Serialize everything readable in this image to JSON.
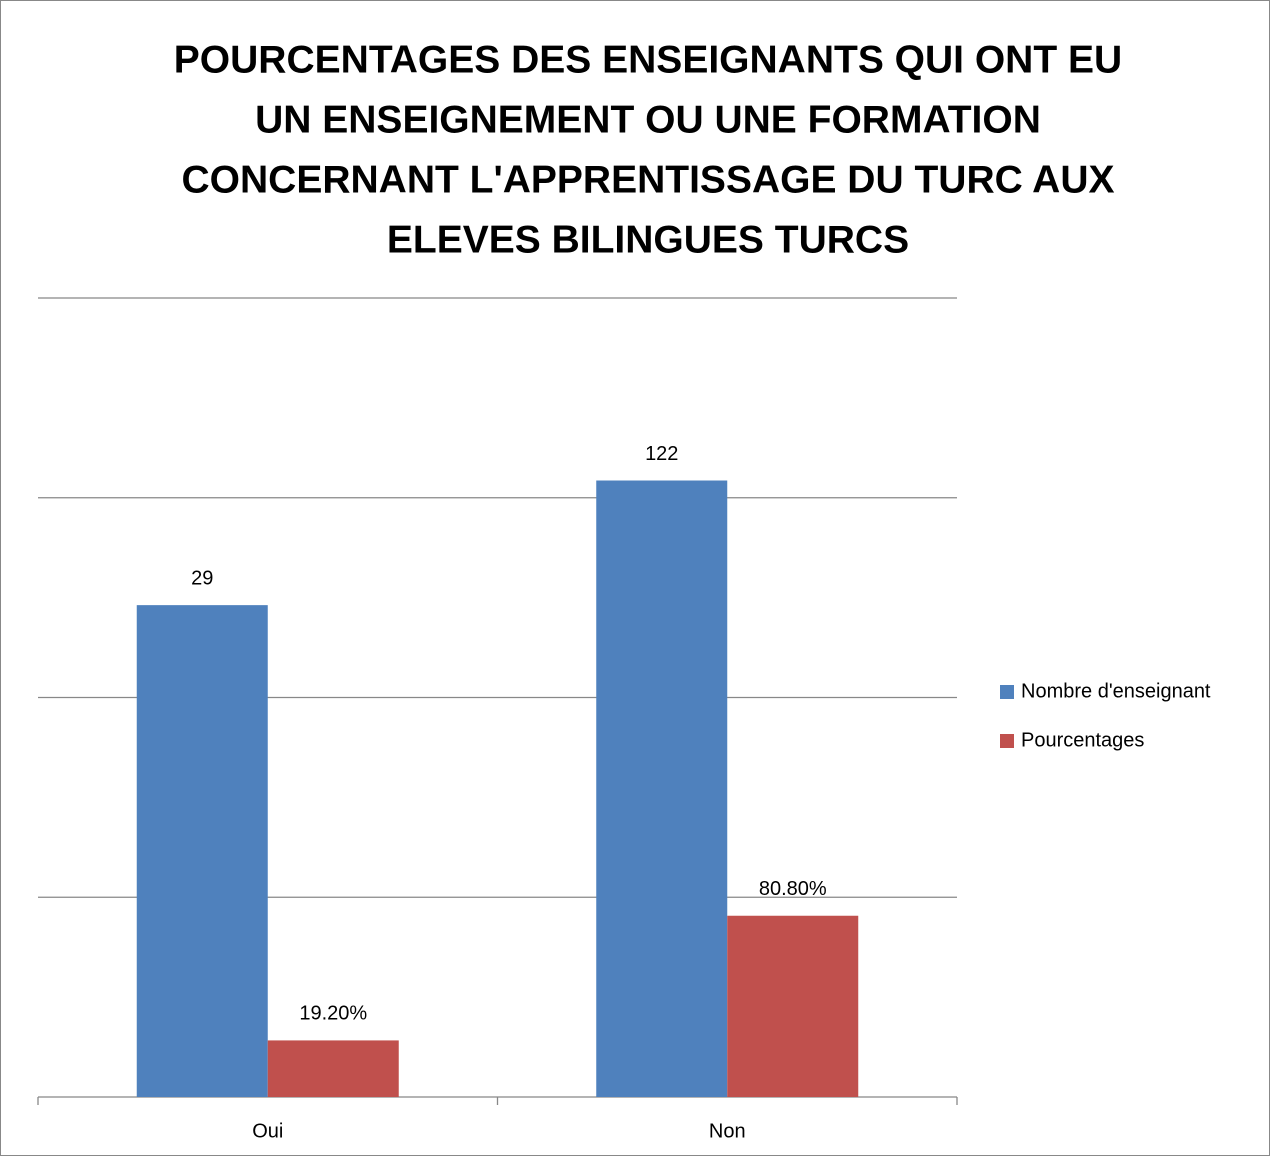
{
  "chart_data": {
    "type": "bar",
    "title": [
      "POURCENTAGES DES ENSEIGNANTS QUI ONT EU",
      "UN ENSEIGNEMENT OU UNE FORMATION",
      "CONCERNANT L'APPRENTISSAGE DU TURC AUX",
      "ELEVES BILINGUES TURCS"
    ],
    "categories": [
      "Oui",
      "Non"
    ],
    "series": [
      {
        "name": "Nombre d'enseignant",
        "color": "#4f81bd",
        "values": [
          29,
          122
        ]
      },
      {
        "name": "Pourcentages",
        "color": "#c0504d",
        "values": [
          0.192,
          0.808
        ],
        "value_labels": [
          "19.20%",
          "80.80%"
        ]
      }
    ],
    "log_scale": true,
    "ylim": [
      0.1,
      1000
    ],
    "yticks": [
      1,
      10,
      100,
      1000
    ],
    "grid": true,
    "legend": "right"
  }
}
